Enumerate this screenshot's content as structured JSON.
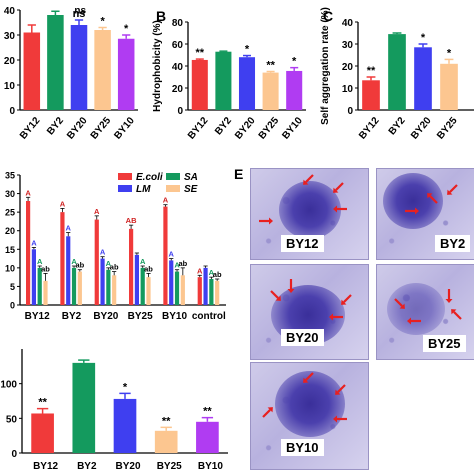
{
  "colors": {
    "red": "#f03a3a",
    "green": "#149a5e",
    "blue": "#3f3ff0",
    "peach": "#fcc690",
    "purple": "#b03cf2",
    "arrow": "#e82020"
  },
  "panel_labels": {
    "b": "B",
    "c": "C",
    "e": "E"
  },
  "chart_data": [
    {
      "id": "A",
      "type": "bar",
      "categories": [
        "BY12",
        "BY2",
        "BY20",
        "BY25",
        "BY10"
      ],
      "values": [
        31,
        38,
        34,
        32,
        28.5
      ],
      "errors": [
        3,
        1.5,
        2,
        1,
        1.5
      ],
      "annotations": [
        "",
        "",
        "ns",
        "*",
        "*"
      ],
      "extra_annotation": "ns",
      "colors": [
        "#f03a3a",
        "#149a5e",
        "#3f3ff0",
        "#fcc690",
        "#b03cf2"
      ],
      "ylim": [
        0,
        40
      ],
      "yticks": [
        "0",
        "10",
        "20",
        "30",
        "40"
      ]
    },
    {
      "id": "B",
      "type": "bar",
      "categories": [
        "BY12",
        "BY2",
        "BY20",
        "BY25",
        "BY10"
      ],
      "values": [
        45.5,
        53,
        48,
        34,
        35.5
      ],
      "errors": [
        0.8,
        0.5,
        1.5,
        1,
        3
      ],
      "annotations": [
        "**",
        "",
        "*",
        "**",
        "*"
      ],
      "colors": [
        "#f03a3a",
        "#149a5e",
        "#3f3ff0",
        "#fcc690",
        "#b03cf2"
      ],
      "ylim": [
        0,
        80
      ],
      "yticks": [
        "0",
        "20",
        "40",
        "60",
        "80"
      ],
      "ylabel": "Hydrophobicity (%)"
    },
    {
      "id": "C",
      "type": "bar",
      "categories": [
        "BY12",
        "BY2",
        "BY20",
        "BY25"
      ],
      "values": [
        13.5,
        34.5,
        28.5,
        21
      ],
      "errors": [
        1.5,
        0.5,
        1.5,
        2
      ],
      "annotations": [
        "**",
        "",
        "*",
        "*"
      ],
      "colors": [
        "#f03a3a",
        "#149a5e",
        "#3f3ff0",
        "#fcc690"
      ],
      "ylim": [
        0,
        40
      ],
      "yticks": [
        "0",
        "10",
        "20",
        "30",
        "40"
      ],
      "ylabel": "Self aggregation rate (%)"
    },
    {
      "id": "D",
      "type": "bar",
      "categories": [
        "BY12",
        "BY2",
        "BY20",
        "BY25",
        "BY10",
        "control"
      ],
      "series": [
        {
          "name": "E.coli",
          "values": [
            28,
            25,
            23,
            20.5,
            26.5,
            7.5
          ],
          "errors": [
            1,
            1,
            1,
            1,
            0.5,
            0.5
          ],
          "labels": [
            "A",
            "A",
            "A",
            "AB",
            "A",
            "A"
          ]
        },
        {
          "name": "SA",
          "values": [
            10,
            10,
            9.5,
            10,
            9,
            7
          ],
          "errors": [
            0.5,
            0.5,
            0.5,
            0.5,
            0.5,
            0.5
          ],
          "labels": [
            "A",
            "A",
            "A",
            "A",
            "A",
            "A"
          ]
        },
        {
          "name": "LM",
          "values": [
            15,
            18.5,
            12.5,
            13.5,
            12,
            10
          ],
          "errors": [
            0.5,
            1,
            0.5,
            0.5,
            0.5,
            0.5
          ],
          "labels": [
            "A",
            "A",
            "A",
            "",
            "A",
            ""
          ]
        },
        {
          "name": "SE",
          "values": [
            6.5,
            9,
            8,
            7.5,
            8,
            6.5
          ],
          "errors": [
            2,
            0.5,
            1,
            1,
            2,
            0.5
          ],
          "labels": [
            "ab",
            "ab",
            "ab",
            "ab",
            "ab",
            "ab"
          ]
        }
      ],
      "colors": [
        "#f03a3a",
        "#149a5e",
        "#3f3ff0",
        "#fcc690"
      ],
      "ylim": [
        0,
        35
      ],
      "yticks": [
        "0",
        "5",
        "10",
        "15",
        "20",
        "25",
        "30",
        "35"
      ],
      "legend": "top-right"
    },
    {
      "id": "F",
      "type": "bar",
      "categories": [
        "BY12",
        "BY2",
        "BY20",
        "BY25",
        "BY10"
      ],
      "values": [
        57,
        130,
        78,
        32,
        45
      ],
      "errors": [
        7,
        4,
        8,
        5,
        6
      ],
      "annotations": [
        "**",
        "",
        "*",
        "**",
        "**"
      ],
      "colors": [
        "#f03a3a",
        "#149a5e",
        "#3f3ff0",
        "#fcc690",
        "#b03cf2"
      ],
      "ylim": [
        0,
        150
      ],
      "yticks": [
        "0",
        "50",
        "100"
      ]
    }
  ],
  "micrographs": [
    {
      "label": "BY12"
    },
    {
      "label": "BY2"
    },
    {
      "label": "BY20"
    },
    {
      "label": "BY25"
    },
    {
      "label": "BY10"
    }
  ]
}
